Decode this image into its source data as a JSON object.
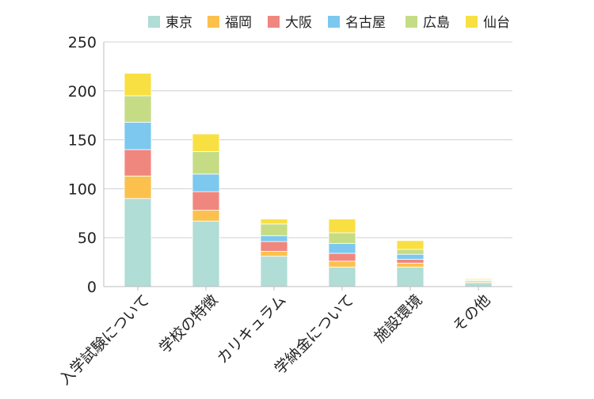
{
  "chart_data": {
    "type": "bar",
    "stacked": true,
    "categories": [
      "入学試験について",
      "学校の特徴",
      "カリキュラム",
      "学納金について",
      "施設環境",
      "その他"
    ],
    "series": [
      {
        "name": "東京",
        "color": "#b0ddd6",
        "values": [
          90,
          67,
          31,
          20,
          20,
          4
        ]
      },
      {
        "name": "福岡",
        "color": "#fbc14c",
        "values": [
          23,
          11,
          5,
          6,
          4,
          1
        ]
      },
      {
        "name": "大阪",
        "color": "#f0877f",
        "values": [
          27,
          19,
          10,
          8,
          4,
          1
        ]
      },
      {
        "name": "名古屋",
        "color": "#7cc8ee",
        "values": [
          28,
          18,
          6,
          10,
          5,
          0
        ]
      },
      {
        "name": "広島",
        "color": "#c5dc85",
        "values": [
          27,
          23,
          12,
          11,
          5,
          1
        ]
      },
      {
        "name": "仙台",
        "color": "#f8e043",
        "values": [
          23,
          18,
          5,
          14,
          9,
          1
        ]
      }
    ],
    "y_ticks": [
      0,
      50,
      100,
      150,
      200,
      250
    ],
    "ylim": [
      0,
      250
    ],
    "grid": true,
    "legend_position": "top-right"
  }
}
